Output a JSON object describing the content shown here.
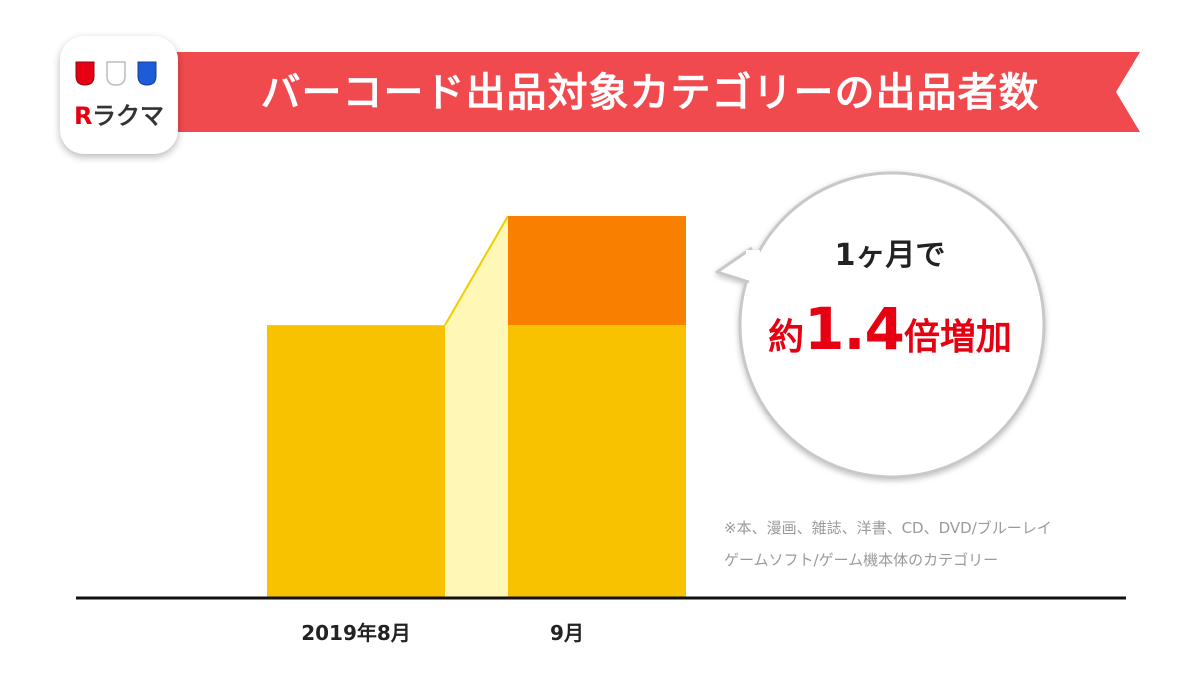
{
  "header": {
    "title": "バーコード出品対象カテゴリーの出品者数",
    "banner_color": "#f04a4e"
  },
  "logo": {
    "text": "ラクマ",
    "mark": "R",
    "colors": [
      "#e60012",
      "#ffffff",
      "#1e5bd8"
    ]
  },
  "chart_data": {
    "type": "bar",
    "title": "バーコード出品対象カテゴリーの出品者数",
    "categories": [
      "2019年8月",
      "9月"
    ],
    "series": [
      {
        "values": [
          1.0,
          1.0
        ],
        "color": "#f8c200"
      },
      {
        "values": [
          0,
          0.4
        ],
        "color": "#f97f00"
      }
    ],
    "ylim": [
      0,
      1.4
    ],
    "connector_color": "#fff7b5",
    "axis_color": "#111111",
    "grid": false,
    "legend": "none"
  },
  "callout": {
    "line1": "1ヶ月で",
    "prefix": "約",
    "value": "1.4",
    "suffix": "倍増加",
    "accent": "#e60012"
  },
  "footnote": {
    "lines": [
      "※本、漫画、雑誌、洋書、CD、DVD/ブルーレイ",
      "ゲームソフト/ゲーム機本体のカテゴリー"
    ]
  }
}
